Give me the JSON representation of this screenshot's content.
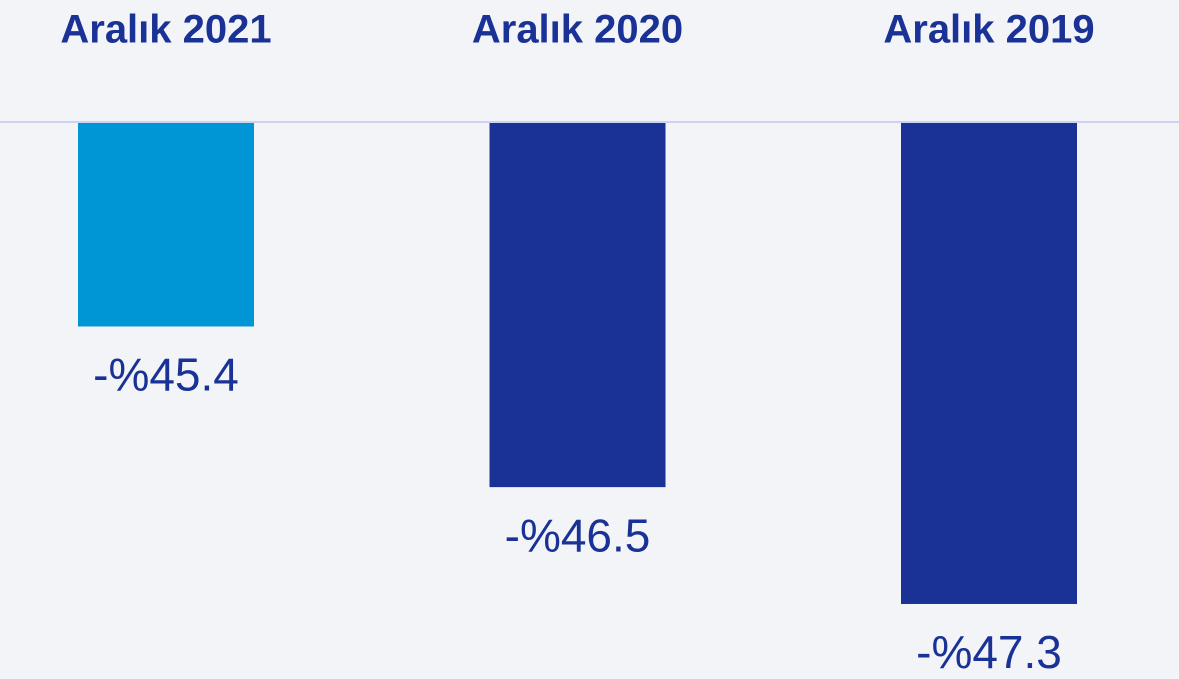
{
  "chart_data": {
    "type": "bar",
    "categories": [
      "Aralık 2021",
      "Aralık 2020",
      "Aralık 2019"
    ],
    "values": [
      -45.4,
      -46.5,
      -47.3
    ],
    "value_labels": [
      "-%45.4",
      "-%46.5",
      "-%47.3"
    ],
    "colors": [
      "#0096d6",
      "#1a3296",
      "#1a3296"
    ],
    "ylim": [
      -47.8,
      -44
    ]
  }
}
